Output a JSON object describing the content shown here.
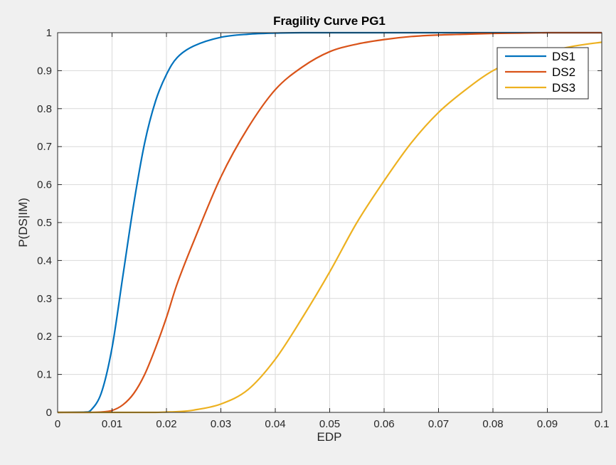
{
  "chart_data": {
    "type": "line",
    "title": "Fragility Curve PG1",
    "xlabel": "EDP",
    "ylabel": "P(DS|IM)",
    "xlim": [
      0,
      0.1
    ],
    "ylim": [
      0,
      1
    ],
    "grid": true,
    "legend_position": "top-right",
    "x_ticks": [
      "0",
      "0.01",
      "0.02",
      "0.03",
      "0.04",
      "0.05",
      "0.06",
      "0.07",
      "0.08",
      "0.09",
      "0.1"
    ],
    "y_ticks": [
      "0",
      "0.1",
      "0.2",
      "0.3",
      "0.4",
      "0.5",
      "0.6",
      "0.7",
      "0.8",
      "0.9",
      "1"
    ],
    "x": [
      0,
      0.005,
      0.006,
      0.008,
      0.01,
      0.012,
      0.014,
      0.016,
      0.018,
      0.02,
      0.022,
      0.025,
      0.03,
      0.035,
      0.04,
      0.045,
      0.05,
      0.055,
      0.06,
      0.065,
      0.07,
      0.075,
      0.08,
      0.085,
      0.09,
      0.095,
      0.1
    ],
    "series": [
      {
        "name": "DS1",
        "color": "#0072BD",
        "values": [
          0,
          0.001,
          0.004,
          0.05,
          0.17,
          0.36,
          0.55,
          0.71,
          0.82,
          0.89,
          0.935,
          0.965,
          0.988,
          0.996,
          0.999,
          1,
          1,
          1,
          1,
          1,
          1,
          1,
          1,
          1,
          1,
          1,
          1
        ]
      },
      {
        "name": "DS2",
        "color": "#D95319",
        "values": [
          0,
          0,
          0,
          0.001,
          0.005,
          0.02,
          0.05,
          0.1,
          0.17,
          0.25,
          0.34,
          0.45,
          0.62,
          0.75,
          0.85,
          0.91,
          0.95,
          0.97,
          0.982,
          0.99,
          0.994,
          0.996,
          0.998,
          0.999,
          1,
          1,
          1
        ]
      },
      {
        "name": "DS3",
        "color": "#EDB120",
        "values": [
          0,
          0,
          0,
          0,
          0,
          0,
          0,
          0,
          0,
          0.001,
          0.002,
          0.006,
          0.022,
          0.06,
          0.14,
          0.25,
          0.37,
          0.5,
          0.61,
          0.71,
          0.79,
          0.85,
          0.9,
          0.93,
          0.95,
          0.965,
          0.975
        ]
      }
    ]
  }
}
